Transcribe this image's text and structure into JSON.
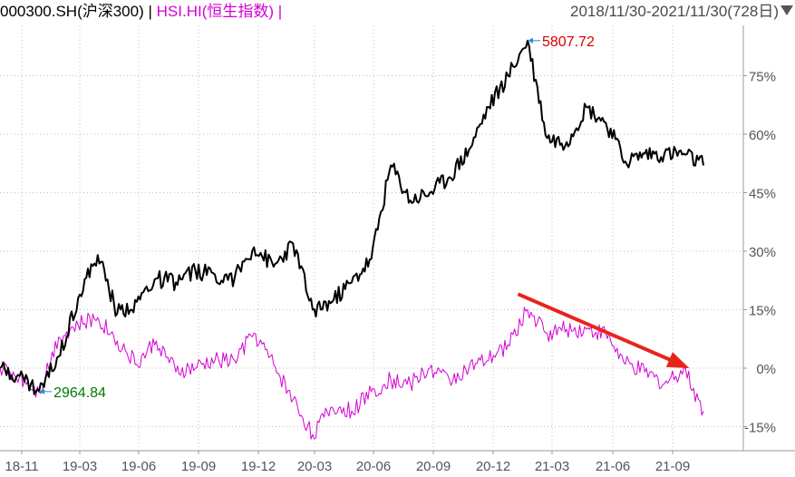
{
  "header": {
    "series1_code": "000300.SH(沪深300)",
    "separator": "|",
    "series2_code": "HSI.HI(恒生指数)",
    "trailing_separator": "|",
    "date_range": "2018/11/30-2021/11/30(728日)",
    "dropdown_icon": "caret-down-icon"
  },
  "colors": {
    "series1": "#000000",
    "series2": "#d400d4",
    "high_label": "#d40000",
    "low_label": "#007a00",
    "marker": "#2a8fd6",
    "arrow": "#e8231c",
    "grid": "#bfbfbf",
    "axis_text": "#555555"
  },
  "chart_data": {
    "type": "line",
    "title": "",
    "xlabel": "",
    "ylabel": "",
    "y_unit": "%",
    "ylim": [
      -15,
      85
    ],
    "x_ticks": [
      "18-11",
      "19-03",
      "19-06",
      "19-09",
      "19-12",
      "20-03",
      "20-06",
      "20-09",
      "20-12",
      "21-03",
      "21-06",
      "21-09"
    ],
    "y_ticks": [
      75,
      60,
      45,
      30,
      15,
      0,
      -15
    ],
    "y_tick_labels": [
      "75%",
      "60%",
      "45%",
      "30%",
      "15%",
      "0%",
      "-15%"
    ],
    "grid": true,
    "series": [
      {
        "name": "000300.SH(沪深300)",
        "color": "#000000",
        "x": [
          "18-11",
          "18-12",
          "19-01",
          "19-02",
          "19-03",
          "19-04",
          "19-05",
          "19-06",
          "19-07",
          "19-08",
          "19-09",
          "19-10",
          "19-11",
          "19-12",
          "20-01",
          "20-02",
          "20-03",
          "20-04",
          "20-05",
          "20-06",
          "20-07",
          "20-08",
          "20-09",
          "20-10",
          "20-11",
          "20-12",
          "21-01",
          "21-02",
          "21-03",
          "21-04",
          "21-05",
          "21-06",
          "21-07",
          "21-08",
          "21-09",
          "21-10",
          "21-11"
        ],
        "values": [
          0,
          -2,
          -6,
          3,
          18,
          29,
          14,
          17,
          23,
          22,
          25,
          24,
          23,
          31,
          26,
          32,
          15,
          17,
          22,
          28,
          52,
          43,
          45,
          49,
          56,
          67,
          75,
          84,
          59,
          58,
          67,
          63,
          53,
          55,
          55,
          55,
          52
        ]
      },
      {
        "name": "HSI.HI(恒生指数)",
        "color": "#d400d4",
        "x": [
          "18-11",
          "18-12",
          "19-01",
          "19-02",
          "19-03",
          "19-04",
          "19-05",
          "19-06",
          "19-07",
          "19-08",
          "19-09",
          "19-10",
          "19-11",
          "19-12",
          "20-01",
          "20-02",
          "20-03",
          "20-04",
          "20-05",
          "20-06",
          "20-07",
          "20-08",
          "20-09",
          "20-10",
          "20-11",
          "20-12",
          "21-01",
          "21-02",
          "21-03",
          "21-04",
          "21-05",
          "21-06",
          "21-07",
          "21-08",
          "21-09",
          "21-10",
          "21-11"
        ],
        "values": [
          0,
          -2,
          -6,
          8,
          11,
          13,
          7,
          1,
          7,
          -1,
          0,
          2,
          2,
          9,
          1,
          -8,
          -17,
          -10,
          -11,
          -6,
          -3,
          -4,
          0,
          -3,
          0,
          2,
          6,
          15,
          9,
          10,
          10,
          9,
          1,
          -1,
          -4,
          0,
          -11
        ]
      }
    ],
    "annotations": [
      {
        "text": "5807.72",
        "kind": "high",
        "series": "000300.SH(沪深300)",
        "x": "21-02",
        "y": 84
      },
      {
        "text": "2964.84",
        "kind": "low",
        "series": "000300.SH(沪深300)",
        "x": "19-01",
        "y": -6
      }
    ],
    "trend_arrow": {
      "from": {
        "x": "21-01",
        "y": 19
      },
      "to": {
        "x": "21-10",
        "y": 0
      },
      "direction": "down"
    }
  }
}
